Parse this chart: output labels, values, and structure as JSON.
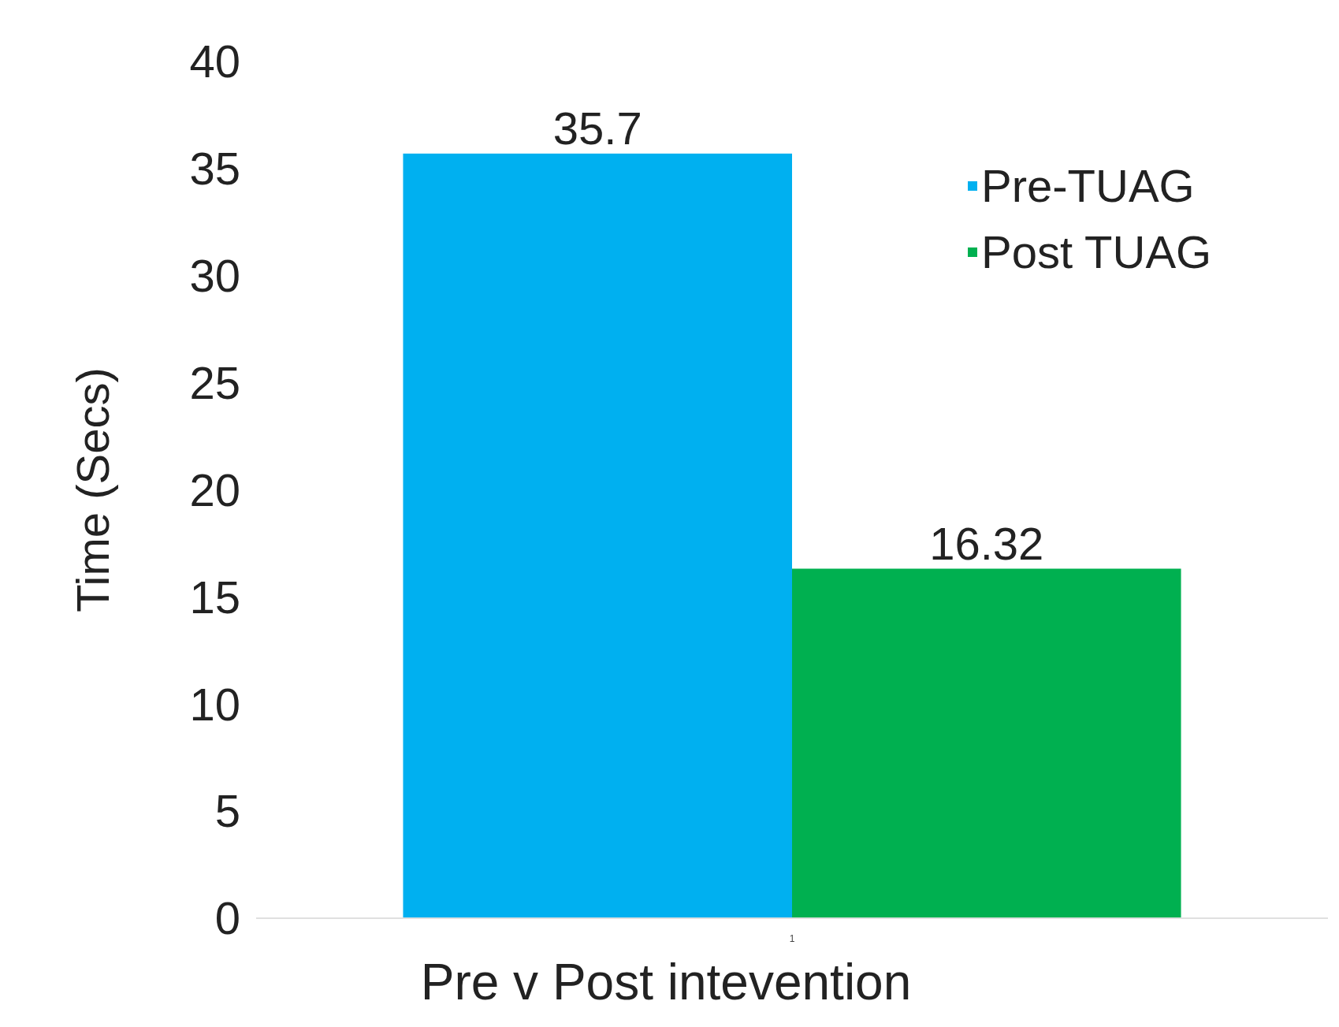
{
  "chart_data": {
    "type": "bar",
    "categories": [
      "1"
    ],
    "series": [
      {
        "name": "Pre-TUAG",
        "color": "#00b0f0",
        "values": [
          35.7
        ]
      },
      {
        "name": "Post TUAG",
        "color": "#00b050",
        "values": [
          16.32
        ]
      }
    ],
    "xlabel": "Pre v Post intevention",
    "ylabel": "Time (Secs)",
    "ylim": [
      0,
      40
    ],
    "yticks": [
      0,
      5,
      10,
      15,
      20,
      25,
      30,
      35,
      40
    ],
    "data_labels": true,
    "legend": "top right",
    "grid": false
  }
}
